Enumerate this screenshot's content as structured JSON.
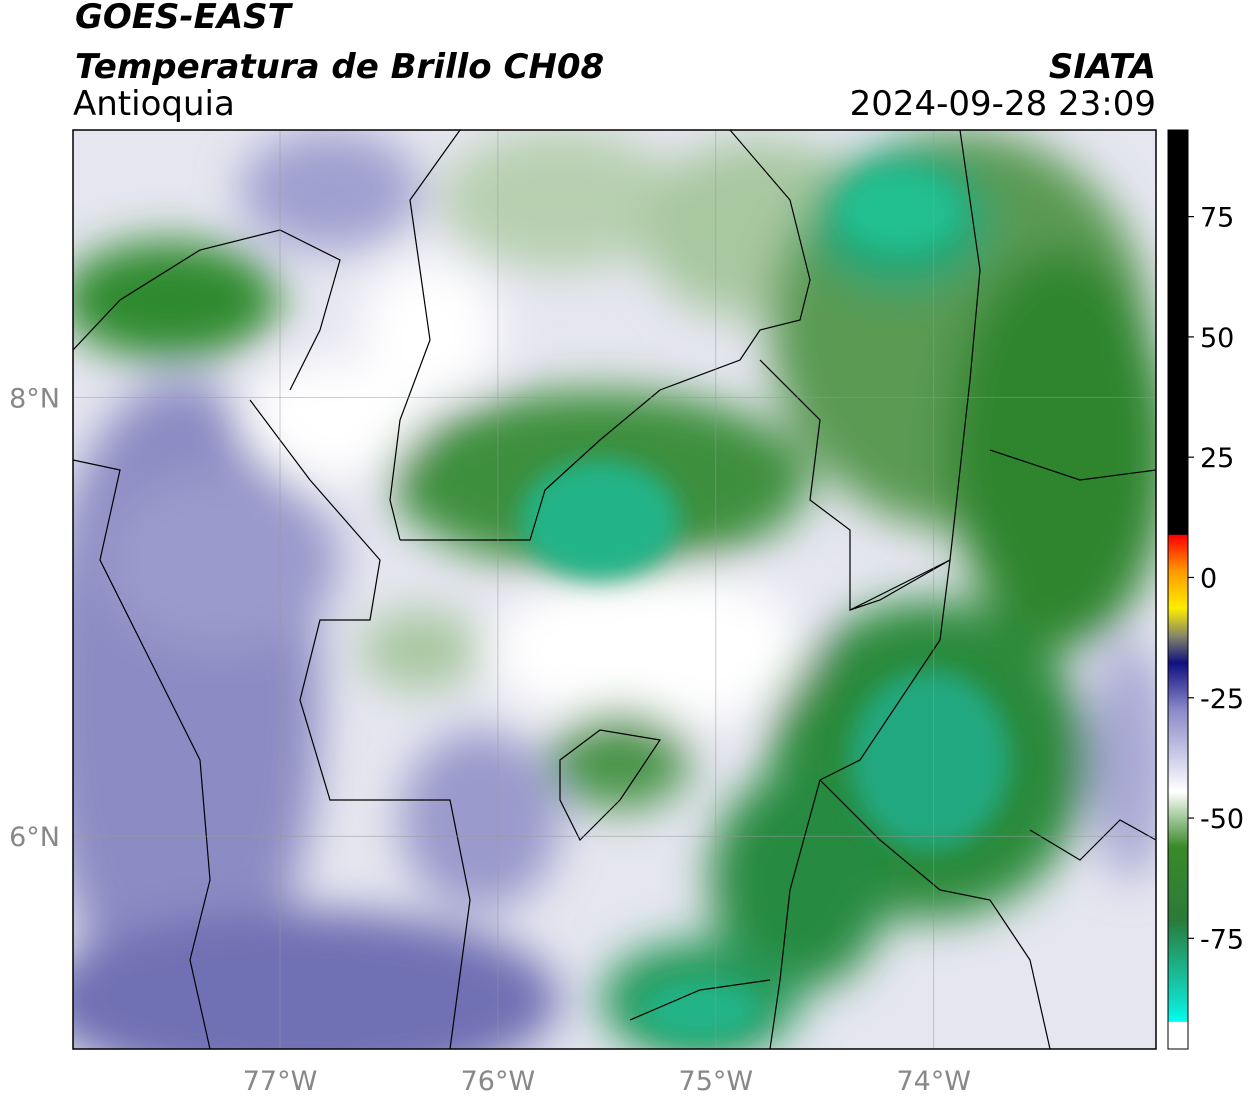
{
  "header": {
    "satellite": "GOES-EAST",
    "product": "Temperatura de Brillo CH08",
    "region": "Antioquia",
    "agency": "SIATA",
    "datetime": "2024-09-28 23:09"
  },
  "map": {
    "xlim": [
      -77.95,
      -72.98
    ],
    "ylim": [
      5.03,
      9.22
    ],
    "xticks": [
      {
        "value": -77,
        "label": "77°W"
      },
      {
        "value": -76,
        "label": "76°W"
      },
      {
        "value": -75,
        "label": "75°W"
      },
      {
        "value": -74,
        "label": "74°W"
      }
    ],
    "yticks": [
      {
        "value": 6,
        "label": "6°N"
      },
      {
        "value": 8,
        "label": "8°N"
      }
    ]
  },
  "colorbar": {
    "lim": [
      -98,
      93
    ],
    "ticks": [
      -75,
      -50,
      -25,
      0,
      25,
      50,
      75
    ]
  }
}
